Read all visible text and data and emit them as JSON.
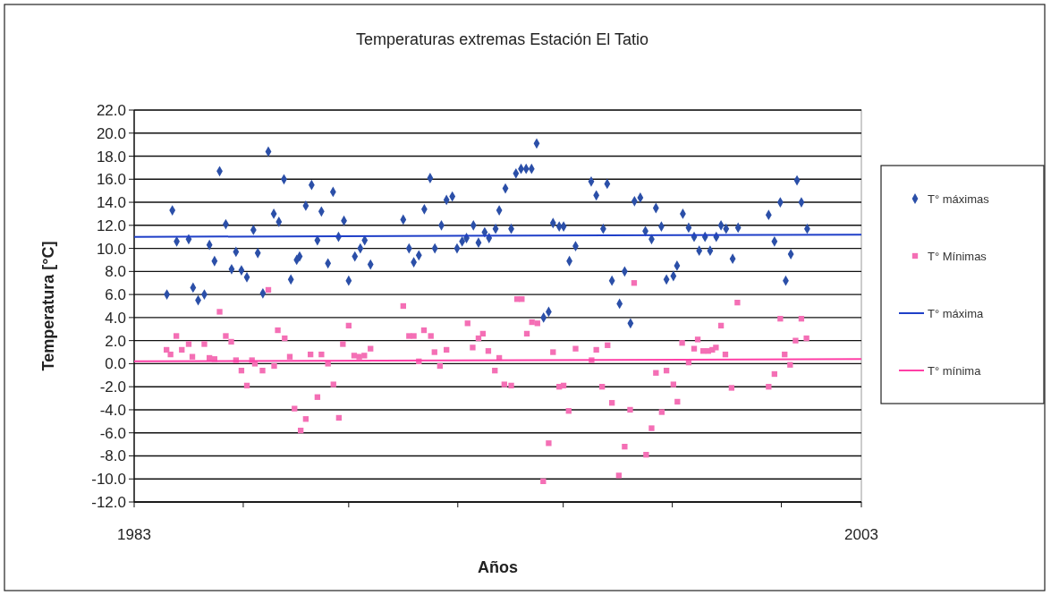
{
  "chart_data": {
    "type": "scatter",
    "title": "Temperaturas extremas Estación El Tatio",
    "xlabel": "Años",
    "ylabel": "Temperatura [°C]",
    "xlim": [
      1983,
      2003
    ],
    "xticks": [
      {
        "value": 1983,
        "label": "1983"
      },
      {
        "value": 1986.0,
        "label": null
      },
      {
        "value": 1988.9,
        "label": null
      },
      {
        "value": 1991.9,
        "label": null
      },
      {
        "value": 1994.8,
        "label": null
      },
      {
        "value": 1997.8,
        "label": null
      },
      {
        "value": 2000.8,
        "label": null
      },
      {
        "value": 2003,
        "label": "2003"
      }
    ],
    "ylim": [
      -12,
      22
    ],
    "yticks": [
      {
        "value": -12,
        "label": "-12.0"
      },
      {
        "value": -10,
        "label": "-10.0"
      },
      {
        "value": -8,
        "label": "-8.0"
      },
      {
        "value": -6,
        "label": "-6.0"
      },
      {
        "value": -4,
        "label": "-4.0"
      },
      {
        "value": -2,
        "label": "-2.0"
      },
      {
        "value": 0,
        "label": "0.0"
      },
      {
        "value": 2,
        "label": "2.0"
      },
      {
        "value": 4,
        "label": "4.0"
      },
      {
        "value": 6,
        "label": "6.0"
      },
      {
        "value": 8,
        "label": "8.0"
      },
      {
        "value": 10,
        "label": "10.0"
      },
      {
        "value": 12,
        "label": "12.0"
      },
      {
        "value": 14,
        "label": "14.0"
      },
      {
        "value": 16,
        "label": "16.0"
      },
      {
        "value": 18,
        "label": "18.0"
      },
      {
        "value": 20,
        "label": "20.0"
      },
      {
        "value": 22,
        "label": "22.0"
      }
    ],
    "grid": "y",
    "legend": "right",
    "series": [
      {
        "name": "T° máximas",
        "color": "#2b4fa8",
        "marker": "diamond",
        "x": [
          1983.9,
          1984.05,
          1984.17,
          1984.5,
          1984.62,
          1984.76,
          1984.93,
          1985.07,
          1985.21,
          1985.35,
          1985.52,
          1985.68,
          1985.8,
          1985.95,
          1986.1,
          1986.28,
          1986.4,
          1986.54,
          1986.69,
          1986.84,
          1986.98,
          1987.12,
          1987.31,
          1987.47,
          1987.55,
          1987.72,
          1987.88,
          1988.04,
          1988.15,
          1988.33,
          1988.47,
          1988.62,
          1988.77,
          1988.9,
          1989.07,
          1989.22,
          1989.34,
          1989.5,
          1990.4,
          1990.56,
          1990.69,
          1990.83,
          1990.98,
          1991.14,
          1991.27,
          1991.45,
          1991.59,
          1991.75,
          1991.88,
          1992.02,
          1992.14,
          1992.33,
          1992.47,
          1992.64,
          1992.76,
          1992.94,
          1993.04,
          1993.21,
          1993.37,
          1993.5,
          1993.64,
          1993.78,
          1993.93,
          1994.07,
          1994.26,
          1994.4,
          1994.52,
          1994.69,
          1994.81,
          1994.97,
          1995.14,
          1995.57,
          1995.71,
          1995.9,
          1996.01,
          1996.14,
          1996.35,
          1996.49,
          1996.65,
          1996.76,
          1996.92,
          1997.06,
          1997.23,
          1997.35,
          1997.5,
          1997.64,
          1997.83,
          1997.93,
          1998.09,
          1998.25,
          1998.4,
          1998.54,
          1998.7,
          1998.84,
          1999.01,
          1999.14,
          1999.28,
          1999.46,
          1999.61,
          2000.45,
          2000.61,
          2000.77,
          2000.92,
          2001.06,
          2001.23,
          2001.35,
          2001.51
        ],
        "values": [
          6.0,
          13.3,
          10.6,
          10.8,
          6.6,
          5.5,
          6.0,
          10.3,
          8.9,
          16.7,
          12.1,
          8.2,
          9.7,
          8.1,
          7.5,
          11.6,
          9.6,
          6.1,
          18.4,
          13.0,
          12.3,
          16.0,
          7.3,
          9.0,
          9.3,
          13.7,
          15.5,
          10.7,
          13.2,
          8.7,
          14.9,
          11.0,
          12.4,
          7.2,
          9.3,
          10.0,
          10.7,
          8.6,
          12.5,
          10.0,
          8.8,
          9.4,
          13.4,
          16.1,
          10.0,
          12.0,
          14.2,
          14.5,
          10.0,
          10.6,
          10.9,
          12.0,
          10.5,
          11.4,
          10.9,
          11.7,
          13.3,
          15.2,
          11.7,
          16.5,
          16.9,
          16.9,
          16.9,
          19.1,
          4.0,
          4.5,
          12.2,
          11.9,
          11.9,
          8.9,
          10.2,
          15.8,
          14.6,
          11.7,
          15.6,
          7.2,
          5.2,
          8.0,
          3.5,
          14.1,
          14.4,
          11.5,
          10.8,
          13.5,
          11.9,
          7.3,
          7.6,
          8.5,
          13.0,
          11.8,
          11.0,
          9.8,
          11.0,
          9.8,
          11.0,
          12.0,
          11.7,
          9.1,
          11.8,
          12.9,
          10.6,
          14.0,
          7.2,
          9.5,
          15.9,
          14.0,
          11.7
        ]
      },
      {
        "name": "T° Mínimas",
        "color": "#f46fb5",
        "marker": "square",
        "x": [
          1983.89,
          1984.0,
          1984.16,
          1984.31,
          1984.5,
          1984.6,
          1984.93,
          1985.07,
          1985.21,
          1985.35,
          1985.52,
          1985.67,
          1985.8,
          1985.95,
          1986.1,
          1986.24,
          1986.32,
          1986.53,
          1986.69,
          1986.85,
          1986.95,
          1987.14,
          1987.28,
          1987.41,
          1987.58,
          1987.72,
          1987.85,
          1988.04,
          1988.15,
          1988.33,
          1988.48,
          1988.63,
          1988.74,
          1988.9,
          1989.05,
          1989.19,
          1989.33,
          1989.5,
          1990.4,
          1990.56,
          1990.69,
          1990.83,
          1990.97,
          1991.16,
          1991.26,
          1991.41,
          1991.59,
          1992.17,
          1992.31,
          1992.47,
          1992.59,
          1992.74,
          1992.92,
          1993.04,
          1993.18,
          1993.37,
          1993.53,
          1993.66,
          1993.8,
          1993.94,
          1994.09,
          1994.25,
          1994.4,
          1994.52,
          1994.69,
          1994.81,
          1994.95,
          1995.14,
          1995.58,
          1995.71,
          1995.87,
          1996.02,
          1996.14,
          1996.33,
          1996.49,
          1996.64,
          1996.75,
          1997.08,
          1997.23,
          1997.35,
          1997.51,
          1997.64,
          1997.83,
          1997.94,
          1998.07,
          1998.25,
          1998.4,
          1998.5,
          1998.65,
          1998.79,
          1998.9,
          1999.0,
          1999.14,
          1999.26,
          1999.43,
          1999.59,
          2000.45,
          2000.61,
          2000.77,
          2000.89,
          2001.04,
          2001.19,
          2001.35,
          2001.49
        ],
        "values": [
          1.2,
          0.8,
          2.4,
          1.2,
          1.7,
          0.6,
          1.7,
          0.5,
          0.4,
          4.5,
          2.4,
          1.9,
          0.3,
          -0.6,
          -1.9,
          0.3,
          0.0,
          -0.6,
          6.4,
          -0.2,
          2.9,
          2.2,
          0.6,
          -3.9,
          -5.8,
          -4.8,
          0.8,
          -2.9,
          0.8,
          0.0,
          -1.8,
          -4.7,
          1.7,
          3.3,
          0.7,
          0.6,
          0.7,
          1.3,
          5.0,
          2.4,
          2.4,
          0.2,
          2.9,
          2.4,
          1.0,
          -0.2,
          1.2,
          3.5,
          1.4,
          2.2,
          2.6,
          1.1,
          -0.6,
          0.5,
          -1.8,
          -1.9,
          5.6,
          5.6,
          2.6,
          3.6,
          3.5,
          -10.2,
          -6.9,
          1.0,
          -2.0,
          -1.9,
          -4.1,
          1.3,
          0.3,
          1.2,
          -2.0,
          1.6,
          -3.4,
          -9.7,
          -7.2,
          -4.0,
          7.0,
          -7.9,
          -5.6,
          -0.8,
          -4.2,
          -0.6,
          -1.8,
          -3.3,
          1.8,
          0.1,
          1.3,
          2.1,
          1.1,
          1.1,
          1.2,
          1.4,
          3.3,
          0.8,
          -2.1,
          5.3,
          -2.0,
          -0.9,
          3.9,
          0.8,
          -0.1,
          2.0,
          3.9,
          2.2
        ]
      },
      {
        "type": "line",
        "name": "T° máxima",
        "color": "#1f3fc8",
        "line_style": "solid",
        "marker": "none",
        "x": [
          1983,
          2003
        ],
        "values": [
          11.0,
          11.2
        ]
      },
      {
        "type": "line",
        "name": "T° mínima",
        "color": "#ff3fa6",
        "line_style": "solid",
        "marker": "none",
        "x": [
          1983,
          2003
        ],
        "values": [
          0.2,
          0.4
        ]
      }
    ]
  }
}
